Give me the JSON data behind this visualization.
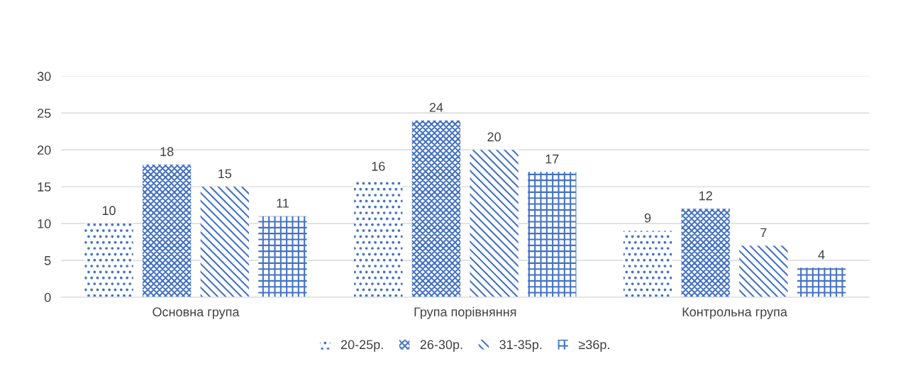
{
  "chart_data": {
    "type": "bar",
    "categories": [
      "Основна група",
      "Група порівняння",
      "Контрольна група"
    ],
    "series": [
      {
        "name": "20-25р.",
        "color": "#4472c4",
        "values": [
          10,
          16,
          9
        ]
      },
      {
        "name": "26-30р.",
        "color": "#4472c4",
        "values": [
          18,
          24,
          12
        ]
      },
      {
        "name": "31-35р.",
        "color": "#4472c4",
        "values": [
          15,
          20,
          7
        ]
      },
      {
        "name": "≥36р.",
        "color": "#4472c4",
        "values": [
          11,
          17,
          4
        ]
      }
    ],
    "ylim": [
      0,
      30
    ],
    "yticks": [
      0,
      5,
      10,
      15,
      20,
      25,
      30
    ],
    "grid": "y",
    "legend": "bottom",
    "data_labels": true
  }
}
